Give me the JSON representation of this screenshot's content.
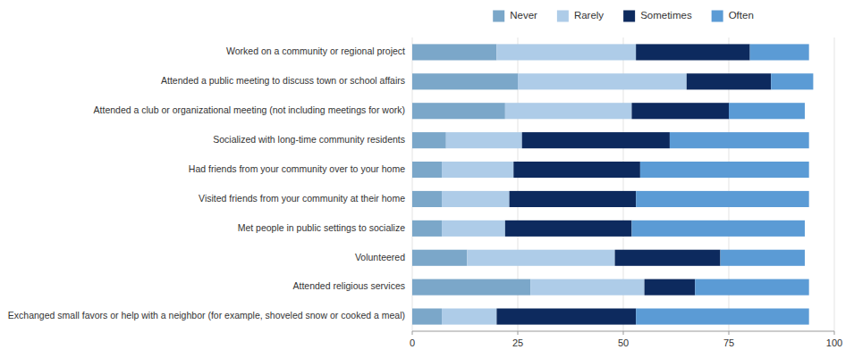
{
  "chart_data": {
    "type": "bar",
    "orientation": "horizontal",
    "stacked": true,
    "categories": [
      "Worked on a community or regional project",
      "Attended a public meeting to discuss town or school affairs",
      "Attended a club or organizational meeting (not including meetings for work)",
      "Socialized with long-time community residents",
      "Had friends from your community over to your home",
      "Visited friends from your community at their home",
      "Met people in public settings to socialize",
      "Volunteered",
      "Attended religious services",
      "Exchanged small favors or help with a neighbor (for example, shoveled snow or cooked a meal)"
    ],
    "series": [
      {
        "name": "Never",
        "color": "#7ba7c9",
        "values": [
          20,
          25,
          22,
          8,
          7,
          7,
          7,
          13,
          28,
          7
        ]
      },
      {
        "name": "Rarely",
        "color": "#aecce8",
        "values": [
          33,
          40,
          30,
          18,
          17,
          16,
          15,
          35,
          27,
          13
        ]
      },
      {
        "name": "Sometimes",
        "color": "#0d2a5e",
        "values": [
          27,
          20,
          23,
          35,
          30,
          30,
          30,
          25,
          12,
          33
        ]
      },
      {
        "name": "Often",
        "color": "#5b9bd5",
        "values": [
          14,
          10,
          18,
          33,
          40,
          41,
          41,
          20,
          27,
          41
        ]
      }
    ],
    "xlim": [
      0,
      100
    ],
    "xticks": [
      0,
      25,
      50,
      75,
      100
    ],
    "grid": true,
    "legend": "top"
  }
}
